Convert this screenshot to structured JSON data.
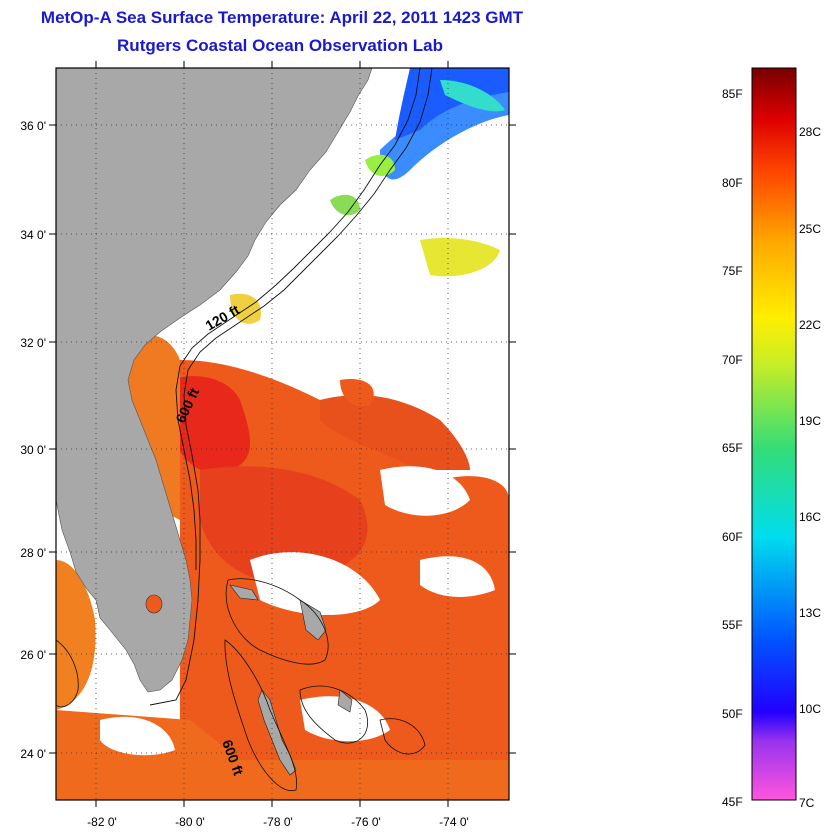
{
  "header": {
    "title_line1": "MetOp-A Sea Surface Temperature:  April 22, 2011 1423 GMT",
    "title_line2": "Rutgers Coastal Ocean Observation Lab"
  },
  "map": {
    "lat_labels": [
      "36 0'",
      "34 0'",
      "32 0'",
      "30 0'",
      "28 0'",
      "26 0'",
      "24 0'"
    ],
    "lon_labels": [
      "-82 0'",
      "-80 0'",
      "-78 0'",
      "-76 0'",
      "-74 0'"
    ],
    "contour_labels": [
      "120 ft",
      "600 ft",
      "600 ft"
    ],
    "colors": {
      "land": "#a8a8a8",
      "cloud": "#ffffff",
      "warm_water": "#ee5a1c",
      "hot_water": "#e8281a",
      "cold_water": "#1a5cff"
    }
  },
  "colorbar": {
    "f_labels": [
      "85F",
      "80F",
      "75F",
      "70F",
      "65F",
      "60F",
      "55F",
      "50F",
      "45F"
    ],
    "c_labels": [
      "28C",
      "25C",
      "22C",
      "19C",
      "16C",
      "13C",
      "10C",
      "7C"
    ]
  }
}
